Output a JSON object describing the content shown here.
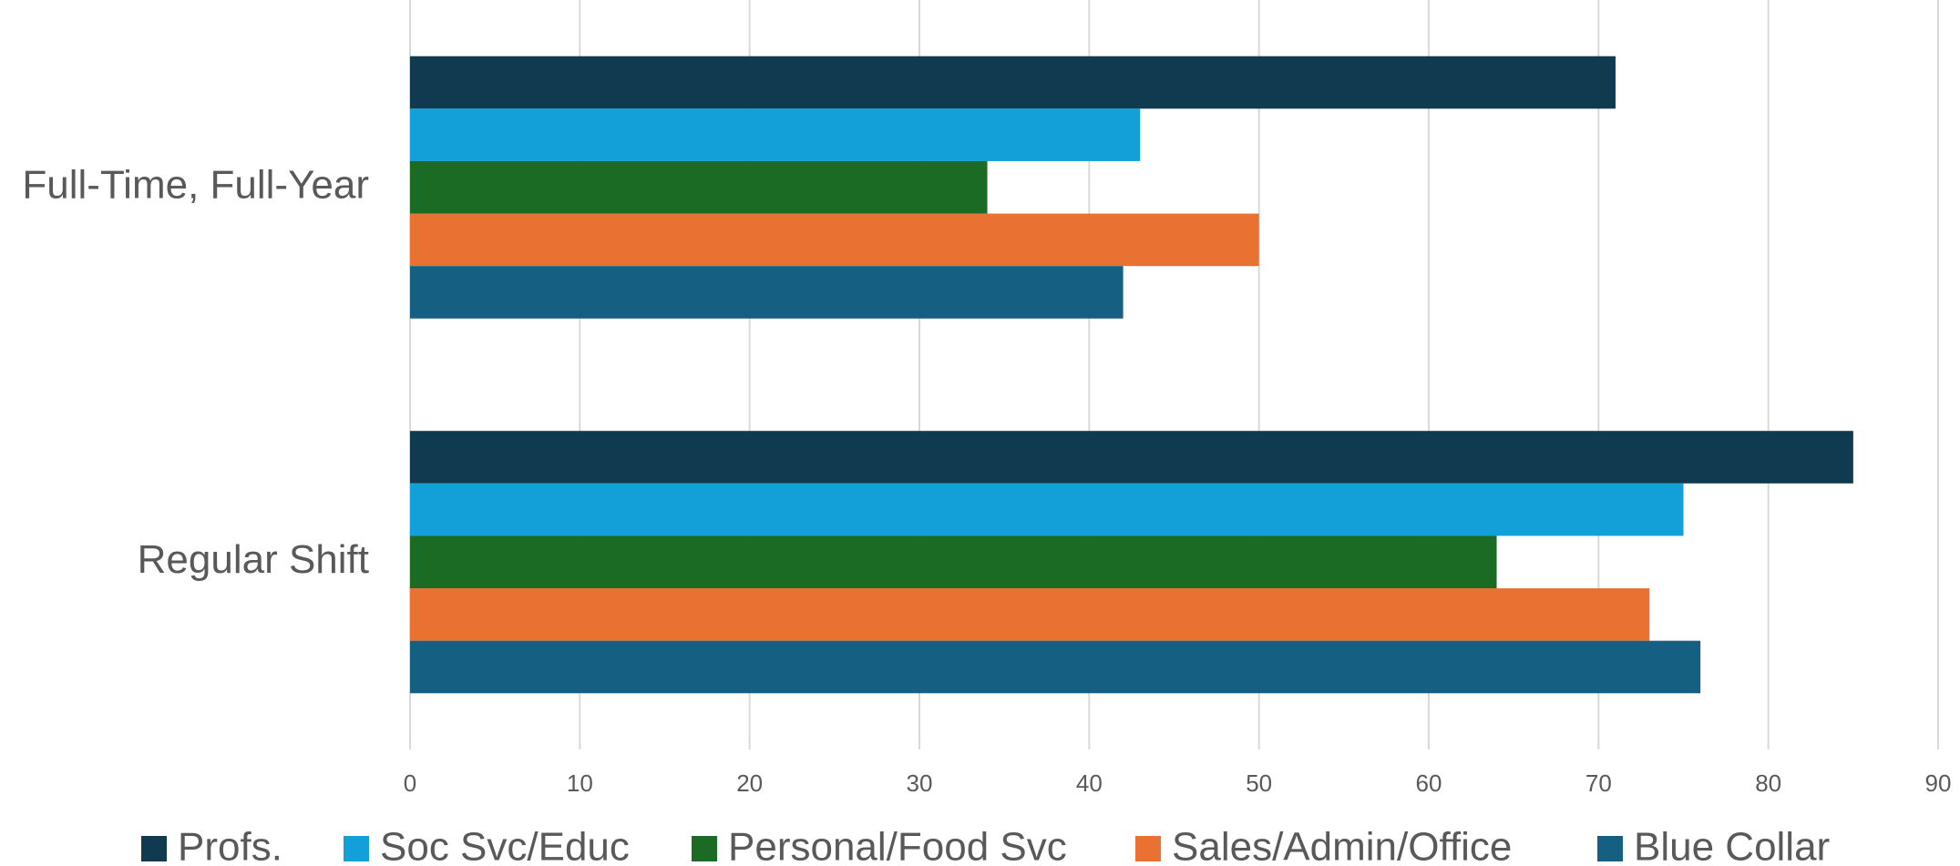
{
  "chart_data": {
    "type": "hbar",
    "categories": [
      "Full-Time, Full-Year",
      "Regular Shift"
    ],
    "series": [
      {
        "name": "Profs.",
        "color": "#0f3a50",
        "values": [
          71,
          85
        ]
      },
      {
        "name": "Soc Svc/Educ",
        "color": "#139fd8",
        "values": [
          43,
          75
        ]
      },
      {
        "name": "Personal/Food Svc",
        "color": "#1b6b25",
        "values": [
          34,
          64
        ]
      },
      {
        "name": "Sales/Admin/Office",
        "color": "#e97132",
        "values": [
          50,
          73
        ]
      },
      {
        "name": "Blue Collar",
        "color": "#156082",
        "values": [
          42,
          76
        ]
      }
    ],
    "xlim": [
      0,
      90
    ],
    "xticks": [
      0,
      10,
      20,
      30,
      40,
      50,
      60,
      70,
      80,
      90
    ],
    "grid": true,
    "legend": "bottom"
  }
}
